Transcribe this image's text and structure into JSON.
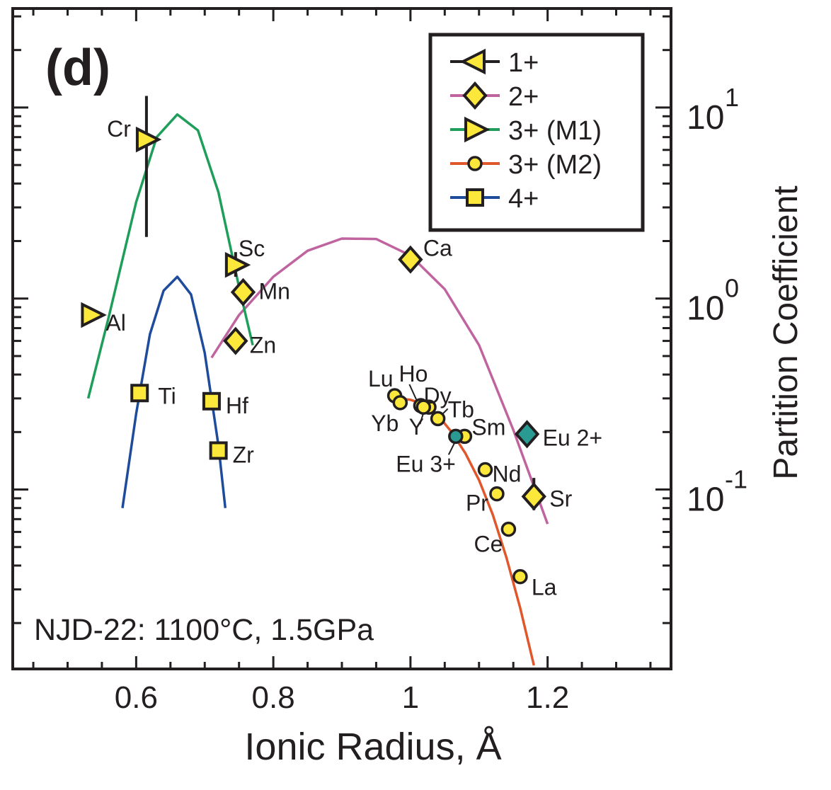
{
  "chart_data": {
    "type": "scatter",
    "panel_label": "(d)",
    "annotation": "NJD-22: 1100°C, 1.5GPa",
    "xlabel": "Ionic Radius, Å",
    "ylabel": "Partition Coefficient",
    "xlim": [
      0.42,
      1.38
    ],
    "ylim": [
      0.0115,
      33
    ],
    "yscale": "log",
    "x_ticks": [
      {
        "value": 0.6,
        "label": "0.6"
      },
      {
        "value": 0.8,
        "label": "0.8"
      },
      {
        "value": 1.0,
        "label": "1"
      },
      {
        "value": 1.2,
        "label": "1.2"
      }
    ],
    "y_ticks": [
      {
        "value": 10,
        "base": "10",
        "exp": "1"
      },
      {
        "value": 1,
        "base": "10",
        "exp": "0"
      },
      {
        "value": 0.1,
        "base": "10",
        "exp": "-1"
      }
    ],
    "legend_position": "top-right",
    "series": [
      {
        "name": "1+",
        "marker": "triangle-left",
        "color": "#231f20",
        "curve": [],
        "points": []
      },
      {
        "name": "2+",
        "marker": "diamond",
        "color": "#c064a0",
        "curve": [
          [
            0.71,
            0.49
          ],
          [
            0.75,
            0.82
          ],
          [
            0.8,
            1.3
          ],
          [
            0.85,
            1.78
          ],
          [
            0.9,
            2.06
          ],
          [
            0.95,
            2.05
          ],
          [
            1.0,
            1.68
          ],
          [
            1.05,
            1.12
          ],
          [
            1.1,
            0.57
          ],
          [
            1.15,
            0.205
          ],
          [
            1.2,
            0.066
          ]
        ],
        "points": [
          {
            "label": "Ca",
            "x": 1.0,
            "y": 1.6
          },
          {
            "label": "Mn",
            "x": 0.756,
            "y": 1.08
          },
          {
            "label": "Zn",
            "x": 0.745,
            "y": 0.6
          },
          {
            "label": "Sr",
            "x": 1.18,
            "y": 0.092,
            "err_low": 0.078,
            "err_high": 0.115
          },
          {
            "label": "Eu 2+",
            "x": 1.17,
            "y": 0.195,
            "fill": "#2a9b93"
          }
        ]
      },
      {
        "name": "3+ (M1)",
        "marker": "triangle-right",
        "color": "#1e9e5a",
        "curve": [
          [
            0.53,
            0.3
          ],
          [
            0.56,
            0.8
          ],
          [
            0.6,
            3.2
          ],
          [
            0.63,
            7.0
          ],
          [
            0.66,
            9.2
          ],
          [
            0.69,
            7.6
          ],
          [
            0.72,
            3.6
          ],
          [
            0.75,
            1.15
          ],
          [
            0.77,
            0.57
          ]
        ],
        "points": [
          {
            "label": "Cr",
            "x": 0.615,
            "y": 6.8,
            "err_low": 2.1,
            "err_high": 11.5
          },
          {
            "label": "Sc",
            "x": 0.745,
            "y": 1.5,
            "err_low": 1.3,
            "err_high": 1.75
          },
          {
            "label": "Al",
            "x": 0.535,
            "y": 0.82
          }
        ]
      },
      {
        "name": "3+ (M2)",
        "marker": "circle",
        "color": "#e0572b",
        "curve": [
          [
            0.98,
            0.3
          ],
          [
            1.0,
            0.295
          ],
          [
            1.02,
            0.28
          ],
          [
            1.04,
            0.245
          ],
          [
            1.06,
            0.2
          ],
          [
            1.08,
            0.155
          ],
          [
            1.1,
            0.112
          ],
          [
            1.12,
            0.074
          ],
          [
            1.14,
            0.044
          ],
          [
            1.16,
            0.024
          ],
          [
            1.18,
            0.012
          ]
        ],
        "points": [
          {
            "label": "Lu",
            "x": 0.977,
            "y": 0.31
          },
          {
            "label": "Yb",
            "x": 0.985,
            "y": 0.285
          },
          {
            "label": "Ho",
            "x": 1.015,
            "y": 0.275
          },
          {
            "label": "Dy",
            "x": 1.027,
            "y": 0.27
          },
          {
            "label": "Tb",
            "x": 1.04,
            "y": 0.235
          },
          {
            "label": "Y",
            "x": 1.019,
            "y": 0.27
          },
          {
            "label": "Sm",
            "x": 1.079,
            "y": 0.19
          },
          {
            "label": "Eu 3+",
            "x": 1.066,
            "y": 0.19,
            "fill": "#2a9b93"
          },
          {
            "label": "Nd",
            "x": 1.109,
            "y": 0.127
          },
          {
            "label": "Pr",
            "x": 1.126,
            "y": 0.095
          },
          {
            "label": "Ce",
            "x": 1.143,
            "y": 0.062
          },
          {
            "label": "La",
            "x": 1.16,
            "y": 0.035
          }
        ]
      },
      {
        "name": "4+",
        "marker": "square",
        "color": "#1e4b9b",
        "curve": [
          [
            0.58,
            0.08
          ],
          [
            0.6,
            0.25
          ],
          [
            0.62,
            0.65
          ],
          [
            0.64,
            1.1
          ],
          [
            0.66,
            1.3
          ],
          [
            0.68,
            1.05
          ],
          [
            0.7,
            0.52
          ],
          [
            0.72,
            0.17
          ],
          [
            0.73,
            0.08
          ]
        ],
        "points": [
          {
            "label": "Ti",
            "x": 0.605,
            "y": 0.32
          },
          {
            "label": "Hf",
            "x": 0.71,
            "y": 0.29
          },
          {
            "label": "Zr",
            "x": 0.72,
            "y": 0.16
          }
        ]
      }
    ]
  }
}
